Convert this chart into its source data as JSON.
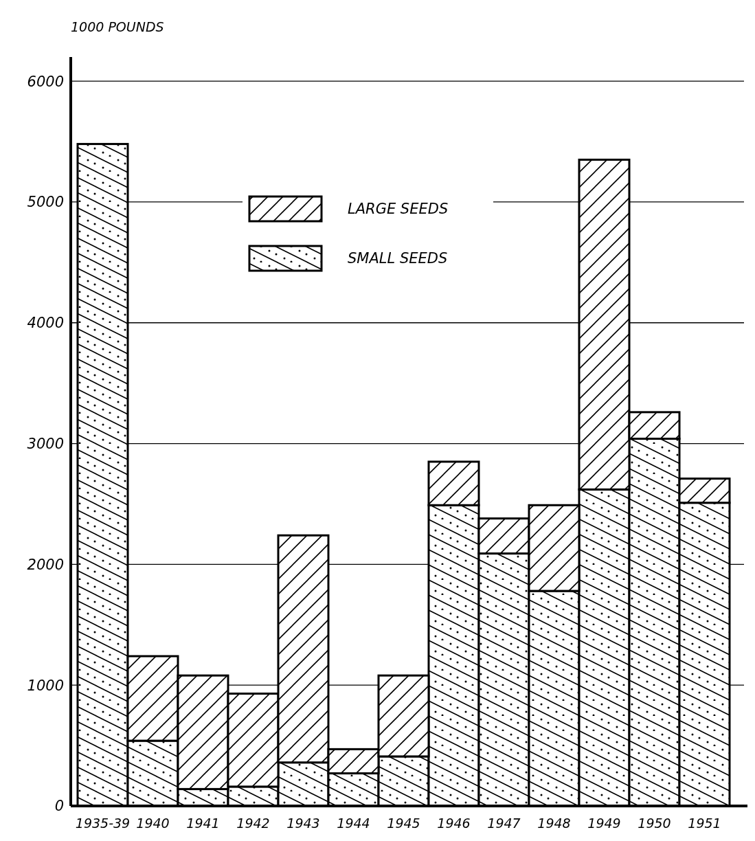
{
  "chart_data": {
    "type": "bar",
    "ylabel": "1000 POUNDS",
    "stacked": true,
    "categories": [
      "1935-39",
      "1940",
      "1941",
      "1942",
      "1943",
      "1944",
      "1945",
      "1946",
      "1947",
      "1948",
      "1949",
      "1950",
      "1951"
    ],
    "series": [
      {
        "name": "SMALL SEEDS",
        "color": "#ffffff",
        "values": [
          5480,
          540,
          140,
          160,
          360,
          270,
          410,
          2490,
          2090,
          1780,
          2620,
          3040,
          2510
        ]
      },
      {
        "name": "LARGE SEEDS",
        "color": "#ffffff",
        "values": [
          0,
          700,
          940,
          770,
          1880,
          200,
          670,
          360,
          290,
          710,
          2730,
          220,
          200
        ]
      }
    ],
    "ylim": [
      0,
      6200
    ],
    "yticks": [
      0,
      1000,
      2000,
      3000,
      4000,
      5000,
      6000
    ],
    "grid": "y",
    "legend": "top"
  }
}
